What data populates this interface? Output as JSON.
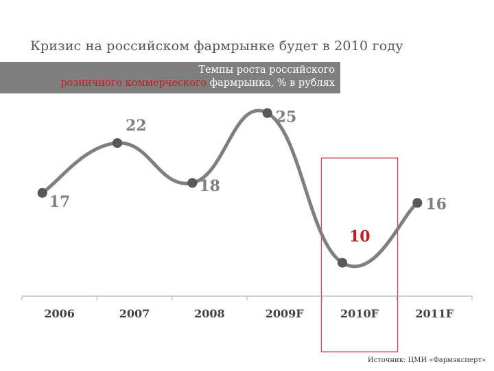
{
  "title": "Кризис на российском фармрынке будет в 2010 году",
  "subtitle": {
    "line1": "Темпы роста российского",
    "line2_highlight": "розничного коммерческого",
    "line2_rest": " фармрынка, % в рублях"
  },
  "source": "Источник: ЦМИ «Фармэксперт»",
  "colors": {
    "line": "#7f7f7f",
    "point": "#595959",
    "label": "#7f7f7f",
    "highlight": "#c91b1b",
    "subtitle_bg": "#7f7f7f"
  },
  "chart_data": {
    "type": "line",
    "categories": [
      "2006",
      "2007",
      "2008",
      "2009F",
      "2010F",
      "2011F"
    ],
    "values": [
      17,
      22,
      18,
      25,
      10,
      16
    ],
    "highlight_category": "2010F",
    "ylim": [
      9,
      26
    ],
    "grid": false,
    "legend": "none"
  }
}
